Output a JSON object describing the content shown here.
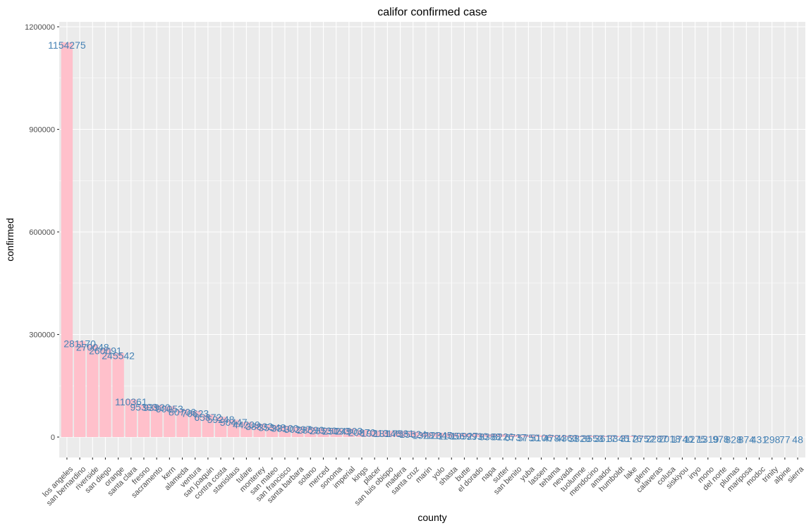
{
  "chart_data": {
    "type": "bar",
    "title": "califor confirmed case",
    "xlabel": "county",
    "ylabel": "confirmed",
    "ylim": [
      -60000,
      1200000
    ],
    "yticks": [
      0,
      300000,
      600000,
      900000,
      1200000
    ],
    "grid": true,
    "colors": {
      "bar": "#ffc0cb",
      "label": "#4682b4",
      "panel": "#ebebeb",
      "grid": "#ffffff"
    },
    "categories": [
      "los angeles",
      "san bernardino",
      "riverside",
      "san diego",
      "orange",
      "santa clara",
      "fresno",
      "sacramento",
      "kern",
      "alameda",
      "ventura",
      "san joaquin",
      "contra costa",
      "stanislaus",
      "tulare",
      "monterey",
      "san mateo",
      "san francisco",
      "santa barbara",
      "solano",
      "merced",
      "sonoma",
      "imperial",
      "kings",
      "placer",
      "san luis obispo",
      "madera",
      "santa cruz",
      "marin",
      "yolo",
      "shasta",
      "butte",
      "el dorado",
      "napa",
      "sutter",
      "san benito",
      "yuba",
      "lassen",
      "tehama",
      "nevada",
      "tuolumne",
      "mendocino",
      "amador",
      "humboldt",
      "lake",
      "glenn",
      "calaveras",
      "colusa",
      "siskiyou",
      "inyo",
      "mono",
      "del norte",
      "plumas",
      "mariposa",
      "modoc",
      "trinity",
      "alpine",
      "sierra"
    ],
    "values": [
      1154275,
      281170,
      270048,
      260091,
      245542,
      110361,
      95393,
      93930,
      90053,
      80706,
      76623,
      65872,
      59248,
      50447,
      44209,
      38832,
      35348,
      33100,
      30297,
      28590,
      26530,
      25093,
      24903,
      20870,
      19213,
      18146,
      17581,
      15524,
      13281,
      12345,
      11056,
      10927,
      9930,
      8388,
      8226,
      6737,
      5750,
      5106,
      4784,
      4363,
      3829,
      3553,
      3617,
      3345,
      3176,
      2752,
      2287,
      2018,
      1740,
      1275,
      1319,
      978,
      828,
      874,
      431,
      298,
      77,
      48
    ],
    "labels": [
      "1154275",
      "281170",
      "270048",
      "260091",
      "245542",
      "110361",
      "95393",
      "93930",
      "90053",
      "80706",
      "76623",
      "65872",
      "59248",
      "50447",
      "44209",
      "38832",
      "35348",
      "33100",
      "30297",
      "28590",
      "26530",
      "25093",
      "24903",
      "20870",
      "19213",
      "18146",
      "17581",
      "15524",
      "13281",
      "12345",
      "11056",
      "10927",
      "9930",
      "8388",
      "8226",
      "6737",
      "5750",
      "5106",
      "4784",
      "4363",
      "3829",
      "3553",
      "3617",
      "3345",
      "3176",
      "2752",
      "2287",
      "2018",
      "1740",
      "1275",
      "1319",
      "978",
      "828",
      "874",
      "431",
      "298",
      "77",
      "48"
    ]
  }
}
